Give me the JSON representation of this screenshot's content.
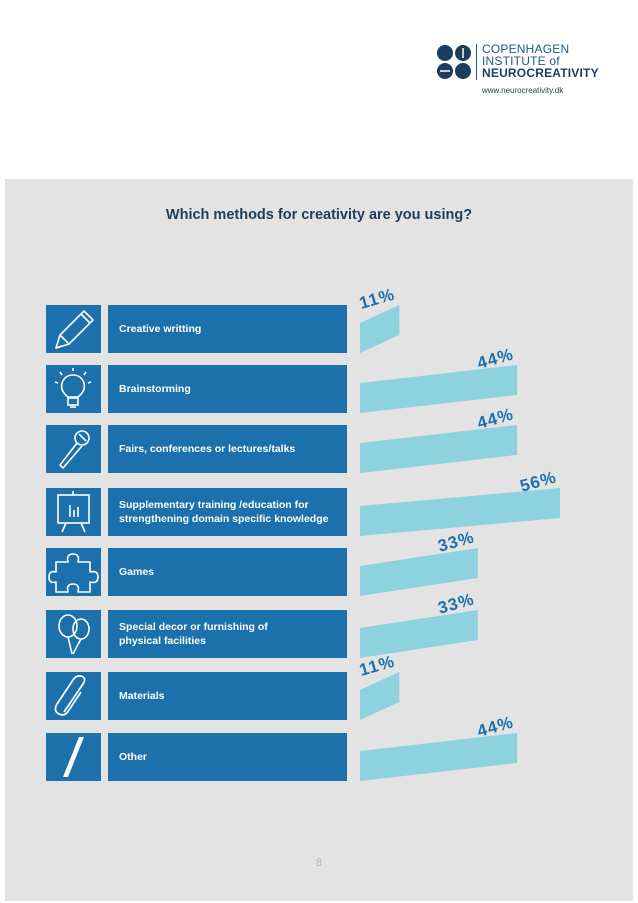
{
  "logo": {
    "line1": "COPENHAGEN",
    "line2": "INSTITUTE of",
    "line3": "NEUROCREATIVITY",
    "url": "www.neurocreativity.dk"
  },
  "page_number": "8",
  "colors": {
    "panel": "#e3e3e4",
    "bar_dark": "#1c71ad",
    "bar_light": "#8ed2e0",
    "title": "#1d3d5c",
    "pct_text": "#1c71ad"
  },
  "chart_data": {
    "type": "bar",
    "title": "Which methods for creativity are you using?",
    "categories": [
      "Creative writting",
      "Brainstorming",
      "Fairs, conferences or lectures/talks",
      "Supplementary training /education for\nstrengthening domain specific knowledge",
      "Games",
      "Special decor or furnishing of\nphysical facilities",
      "Materials",
      "Other"
    ],
    "icons": [
      "pencil-icon",
      "lightbulb-icon",
      "microphone-icon",
      "presentation-board-icon",
      "puzzle-icon",
      "balloons-icon",
      "paperclip-icon",
      "slash-icon"
    ],
    "values": [
      11,
      44,
      44,
      56,
      33,
      33,
      11,
      44
    ],
    "labels": [
      "11%",
      "44%",
      "44%",
      "56%",
      "33%",
      "33%",
      "11%",
      "44%"
    ],
    "unit": "%",
    "xlim": [
      0,
      56
    ]
  }
}
